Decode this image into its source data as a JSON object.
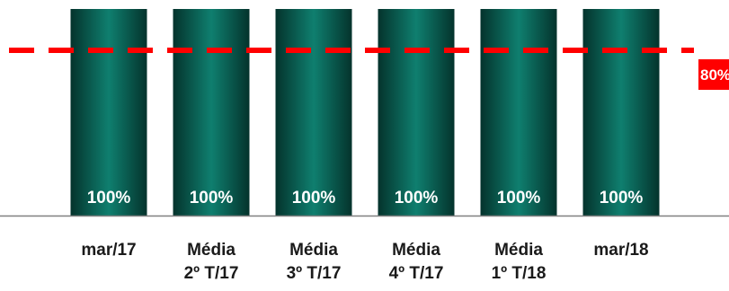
{
  "chart_data": {
    "type": "bar",
    "categories": [
      "mar/17",
      "Média\n2º T/17",
      "Média\n3º T/17",
      "Média\n4º T/17",
      "Média\n1º T/18",
      "mar/18"
    ],
    "series": [
      {
        "values": [
          100,
          100,
          100,
          100,
          100,
          100
        ]
      }
    ],
    "data_labels": [
      "100%",
      "100%",
      "100%",
      "100%",
      "100%",
      "100%"
    ],
    "reference_line": {
      "value": 80,
      "label": "80%",
      "style": "dashed",
      "color": "#ff0000"
    },
    "ylim": [
      0,
      100
    ],
    "grid": false,
    "legend": "none",
    "colors": {
      "bar_center": "#0f7f6f",
      "bar_edge": "#04332c",
      "data_label_text": "#ffffff",
      "reference_label_bg": "#ff0000",
      "axis": "#808080"
    }
  }
}
